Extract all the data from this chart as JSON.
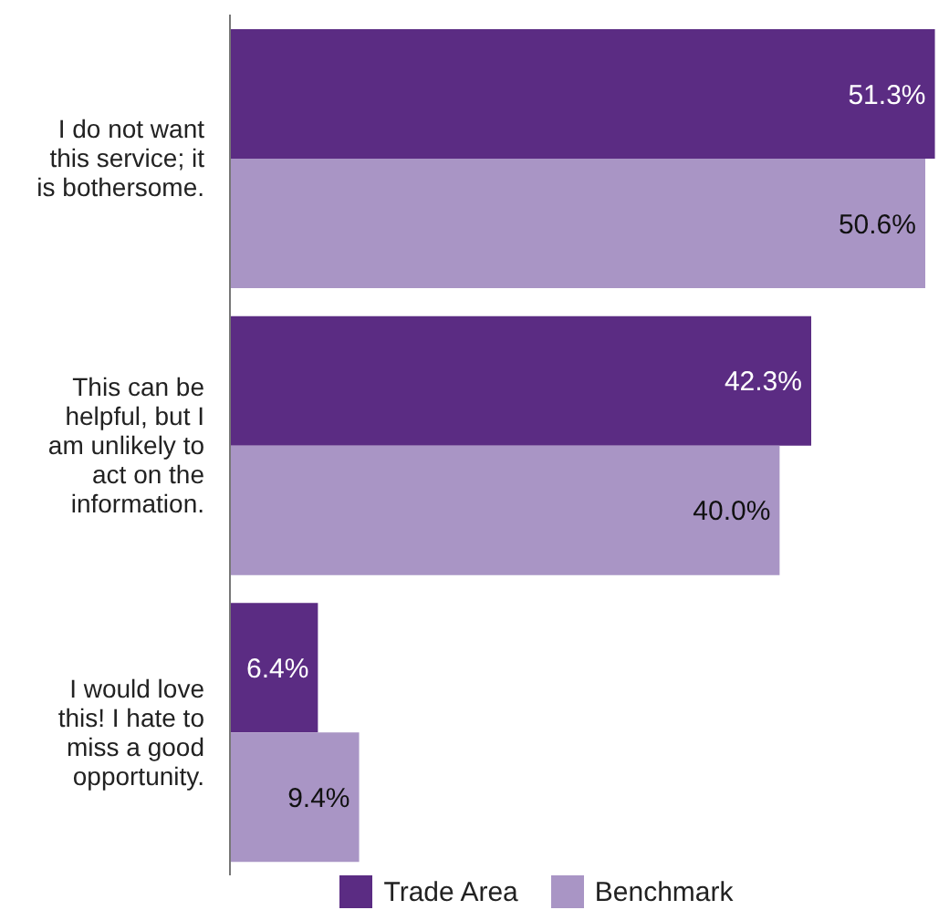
{
  "chart_data": {
    "type": "bar",
    "orientation": "horizontal",
    "categories": [
      "I do not want this service; it is bothersome.",
      "This can be helpful, but I am unlikely to act on the information.",
      "I would love this! I hate to miss a good opportunity."
    ],
    "series": [
      {
        "name": "Trade Area",
        "color": "#5b2c83",
        "values": [
          51.3,
          42.3,
          6.4
        ],
        "value_labels": [
          "51.3%",
          "42.3%",
          "6.4%"
        ]
      },
      {
        "name": "Benchmark",
        "color": "#a995c5",
        "values": [
          50.6,
          40.0,
          9.4
        ],
        "value_labels": [
          "50.6%",
          "40.0%",
          "9.4%"
        ]
      }
    ],
    "legend": "bottom",
    "grid": false
  }
}
